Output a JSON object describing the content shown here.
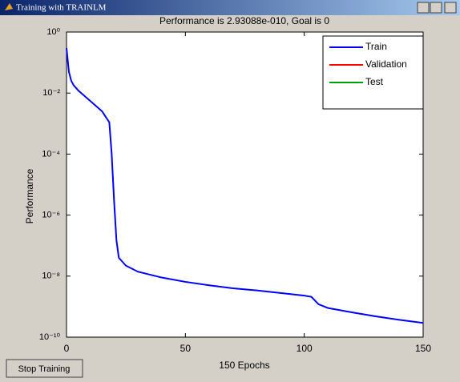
{
  "window": {
    "title": "Training with TRAINLM",
    "button": "Stop Training"
  },
  "chart_data": {
    "type": "line",
    "title": "Performance is 2.93088e-010, Goal is 0",
    "xlabel": "150 Epochs",
    "ylabel": "Performance",
    "x": [
      0,
      1,
      2,
      3,
      5,
      10,
      15,
      18,
      19,
      20,
      21,
      22,
      25,
      30,
      40,
      50,
      60,
      70,
      80,
      90,
      100,
      103,
      106,
      110,
      120,
      130,
      140,
      150
    ],
    "series": [
      {
        "name": "Train",
        "color": "#0000ff",
        "values": [
          0.3,
          0.05,
          0.025,
          0.018,
          0.012,
          0.0055,
          0.0025,
          0.0011,
          0.0001,
          3e-06,
          1.5e-07,
          4e-08,
          2.2e-08,
          1.4e-08,
          9e-09,
          6.5e-09,
          5e-09,
          4e-09,
          3.4e-09,
          2.8e-09,
          2.3e-09,
          2.1e-09,
          1.2e-09,
          9e-10,
          6.5e-10,
          4.8e-10,
          3.7e-10,
          2.93088e-10
        ]
      },
      {
        "name": "Validation",
        "color": "#ff0000",
        "values": [
          null,
          null,
          null,
          null,
          null,
          null,
          null,
          null,
          null,
          null,
          null,
          null,
          null,
          null,
          null,
          null,
          null,
          null,
          null,
          null,
          null,
          null,
          null,
          null,
          null,
          null,
          null,
          null
        ]
      },
      {
        "name": "Test",
        "color": "#00a000",
        "values": [
          null,
          null,
          null,
          null,
          null,
          null,
          null,
          null,
          null,
          null,
          null,
          null,
          null,
          null,
          null,
          null,
          null,
          null,
          null,
          null,
          null,
          null,
          null,
          null,
          null,
          null,
          null,
          null
        ]
      }
    ],
    "xlim": [
      0,
      150
    ],
    "xticks": [
      0,
      50,
      100,
      150
    ],
    "ylim": [
      1e-10,
      1
    ],
    "yscale": "log",
    "yticks": [
      {
        "value": 1,
        "label": "10⁰"
      },
      {
        "value": 0.01,
        "label": "10⁻²"
      },
      {
        "value": 0.0001,
        "label": "10⁻⁴"
      },
      {
        "value": 1e-06,
        "label": "10⁻⁶"
      },
      {
        "value": 1e-08,
        "label": "10⁻⁸"
      },
      {
        "value": 1e-10,
        "label": "10⁻¹⁰"
      }
    ],
    "legend": "upper right"
  }
}
